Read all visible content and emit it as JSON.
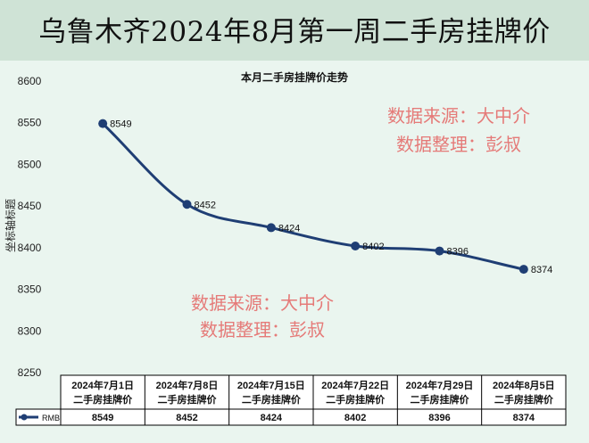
{
  "banner": {
    "title": "乌鲁木齐2024年8月第一周二手房挂牌价"
  },
  "watermarks": [
    {
      "line1": "数据来源：大中介",
      "line2": "数据整理：彭叔"
    },
    {
      "line1": "数据来源：大中介",
      "line2": "数据整理：彭叔"
    }
  ],
  "colors": {
    "series": "#1f3e74",
    "banner_bg": "#cfe3d6",
    "plot_bg": "#eaf5ef",
    "watermark": "#e57a78"
  },
  "chart_data": {
    "type": "line",
    "title": "本月二手房挂牌价走势",
    "ylabel": "坐标轴标题",
    "xlabel": "",
    "ylim": [
      8250,
      8600
    ],
    "ytick_step": 50,
    "yticks": [
      "8600",
      "8550",
      "8500",
      "8450",
      "8400",
      "8350",
      "8300",
      "8250"
    ],
    "grid": false,
    "categories": [
      [
        "2024年7月1日",
        "二手房挂牌价"
      ],
      [
        "2024年7月8日",
        "二手房挂牌价"
      ],
      [
        "2024年7月15日",
        "二手房挂牌价"
      ],
      [
        "2024年7月22日",
        "二手房挂牌价"
      ],
      [
        "2024年7月29日",
        "二手房挂牌价"
      ],
      [
        "2024年8月5日",
        "二手房挂牌价"
      ]
    ],
    "series": [
      {
        "name": "RMB",
        "values": [
          8549,
          8452,
          8424,
          8402,
          8396,
          8374
        ]
      }
    ],
    "data_table": true,
    "smooth": true
  }
}
